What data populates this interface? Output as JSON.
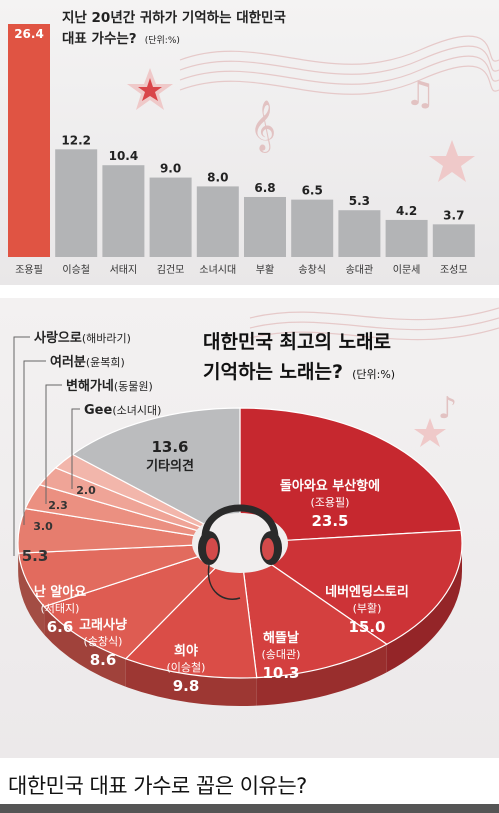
{
  "chart_data": [
    {
      "type": "bar",
      "title_line1": "지난 20년간 귀하가 기억하는 대한민국",
      "title_line2": "대표 가수는?",
      "unit": "(단위:%)",
      "categories": [
        "조용필",
        "이승철",
        "서태지",
        "김건모",
        "소녀시대",
        "부활",
        "송창식",
        "송대관",
        "이문세",
        "조성모"
      ],
      "values": [
        26.4,
        12.2,
        10.4,
        9.0,
        8.0,
        6.8,
        6.5,
        5.3,
        4.2,
        3.7
      ],
      "value_labels": [
        "26.4",
        "12.2",
        "10.4",
        "9.0",
        "8.0",
        "6.8",
        "6.5",
        "5.3",
        "4.2",
        "3.7"
      ],
      "ylim": [
        0,
        26.4
      ],
      "highlight_color": "#e05443",
      "bar_color": "#b3b4b6"
    },
    {
      "type": "pie",
      "title_line1": "대한민국 최고의 노래로",
      "title_line2": "기억하는 노래는?",
      "unit": "(단위:%)",
      "slices": [
        {
          "song": "돌아와요 부산항에",
          "artist": "(조용필)",
          "value": 23.5,
          "label": "23.5",
          "color": "#c6282f"
        },
        {
          "song": "네버엔딩스토리",
          "artist": "(부활)",
          "value": 15.0,
          "label": "15.0",
          "color": "#cd3337"
        },
        {
          "song": "해뜰날",
          "artist": "(송대관)",
          "value": 10.3,
          "label": "10.3",
          "color": "#d4403f"
        },
        {
          "song": "희야",
          "artist": "(이승철)",
          "value": 9.8,
          "label": "9.8",
          "color": "#da4d47"
        },
        {
          "song": "고래사냥",
          "artist": "(송창식)",
          "value": 8.6,
          "label": "8.6",
          "color": "#de5c52"
        },
        {
          "song": "난 알아요",
          "artist": "(서태지)",
          "value": 6.6,
          "label": "6.6",
          "color": "#e26b5e"
        },
        {
          "song": "",
          "artist": "",
          "value": 5.3,
          "label": "5.3",
          "color": "#e67d6e"
        },
        {
          "song": "",
          "artist": "",
          "value": 3.0,
          "label": "3.0",
          "color": "#eb9081"
        },
        {
          "song": "",
          "artist": "",
          "value": 2.3,
          "label": "2.3",
          "color": "#efa497"
        },
        {
          "song": "",
          "artist": "",
          "value": 2.0,
          "label": "2.0",
          "color": "#f2b6ab"
        },
        {
          "song": "기타의견",
          "artist": "",
          "value": 13.6,
          "label": "13.6",
          "color": "#bbbcbe"
        }
      ],
      "legend": [
        {
          "song": "사랑으로",
          "artist": "(해바라기)"
        },
        {
          "song": "여러분",
          "artist": "(윤복희)"
        },
        {
          "song": "변해가네",
          "artist": "(동물원)"
        },
        {
          "song": "Gee",
          "artist": "(소녀시대)"
        }
      ]
    }
  ],
  "footer": {
    "title": "대한민국 대표 가수로 꼽은 이유는?"
  }
}
